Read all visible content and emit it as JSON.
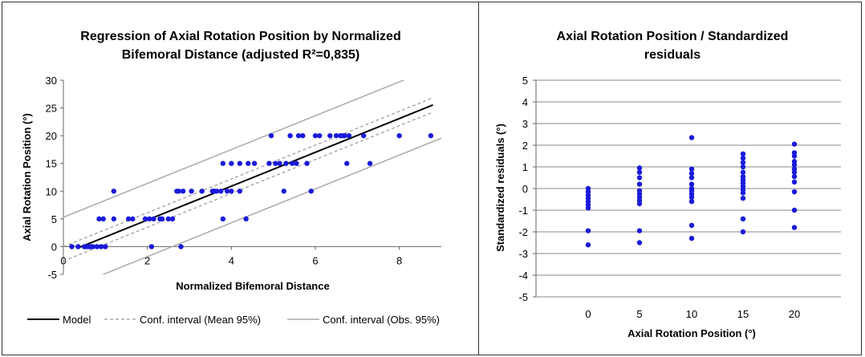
{
  "chart_data": [
    {
      "type": "scatter",
      "title_lines": [
        "Regression of Axial Rotation Position by Normalized",
        "Bifemoral Distance (adjusted R²=0,835)"
      ],
      "xlabel": "Normalized Bifemoral Distance",
      "ylabel": "Axial Rotation Position (°)",
      "xlim": [
        0,
        9
      ],
      "ylim": [
        -5,
        30
      ],
      "xticks": [
        "0",
        "2",
        "4",
        "6",
        "8"
      ],
      "yticks": [
        "-5",
        "0",
        "5",
        "10",
        "15",
        "20",
        "25",
        "30"
      ],
      "xtick_values": [
        0,
        2,
        4,
        6,
        8
      ],
      "ytick_values": [
        -5,
        0,
        5,
        10,
        15,
        20,
        25,
        30
      ],
      "point_color": "#1a1adb",
      "points": [
        [
          0.2,
          0
        ],
        [
          0.35,
          0
        ],
        [
          0.5,
          0
        ],
        [
          0.55,
          0
        ],
        [
          0.6,
          0
        ],
        [
          0.65,
          0
        ],
        [
          0.7,
          0
        ],
        [
          0.8,
          0
        ],
        [
          0.9,
          0
        ],
        [
          1.0,
          0
        ],
        [
          0.85,
          5
        ],
        [
          0.95,
          5
        ],
        [
          1.2,
          10
        ],
        [
          1.2,
          5
        ],
        [
          1.55,
          5
        ],
        [
          1.65,
          5
        ],
        [
          1.95,
          5
        ],
        [
          2.05,
          5
        ],
        [
          2.1,
          0
        ],
        [
          2.15,
          5
        ],
        [
          2.3,
          5
        ],
        [
          2.35,
          5
        ],
        [
          2.5,
          5
        ],
        [
          2.6,
          5
        ],
        [
          2.7,
          10
        ],
        [
          2.75,
          10
        ],
        [
          2.8,
          0
        ],
        [
          2.85,
          10
        ],
        [
          3.05,
          10
        ],
        [
          3.3,
          10
        ],
        [
          3.55,
          10
        ],
        [
          3.6,
          10
        ],
        [
          3.65,
          10
        ],
        [
          3.75,
          10
        ],
        [
          3.8,
          5
        ],
        [
          3.8,
          15
        ],
        [
          3.9,
          10
        ],
        [
          4.0,
          15
        ],
        [
          4.0,
          10
        ],
        [
          4.2,
          15
        ],
        [
          4.2,
          10
        ],
        [
          4.35,
          5
        ],
        [
          4.4,
          15
        ],
        [
          4.55,
          15
        ],
        [
          4.9,
          15
        ],
        [
          4.95,
          20
        ],
        [
          5.05,
          15
        ],
        [
          5.15,
          15
        ],
        [
          5.25,
          10
        ],
        [
          5.3,
          15
        ],
        [
          5.4,
          20
        ],
        [
          5.45,
          15
        ],
        [
          5.55,
          15
        ],
        [
          5.6,
          20
        ],
        [
          5.7,
          20
        ],
        [
          5.8,
          15
        ],
        [
          5.9,
          10
        ],
        [
          6.0,
          20
        ],
        [
          6.1,
          20
        ],
        [
          6.35,
          20
        ],
        [
          6.5,
          20
        ],
        [
          6.6,
          20
        ],
        [
          6.65,
          20
        ],
        [
          6.7,
          20
        ],
        [
          6.75,
          15
        ],
        [
          6.8,
          20
        ],
        [
          7.15,
          20
        ],
        [
          7.3,
          15
        ],
        [
          8.0,
          20
        ],
        [
          8.75,
          20
        ]
      ],
      "model": {
        "intercept": -1.3,
        "slope": 3.05
      },
      "mean_ci_half_width": 1.3,
      "obs_ci_half_width": 6.6,
      "legend": [
        {
          "label": "Model",
          "style": "solid-black"
        },
        {
          "label": "Conf. interval (Mean 95%)",
          "style": "dashed-gray"
        },
        {
          "label": "Conf. interval (Obs. 95%)",
          "style": "solid-gray"
        }
      ],
      "legend_position": "bottom"
    },
    {
      "type": "scatter",
      "title_lines": [
        "Axial Rotation Position / Standardized",
        "residuals"
      ],
      "xlabel": "Axial Rotation Position (°)",
      "ylabel": "Standardized residuals (°)",
      "categories": [
        "0",
        "5",
        "10",
        "15",
        "20"
      ],
      "ylim": [
        -5,
        5
      ],
      "yticks": [
        "5",
        "4",
        "3",
        "2",
        "1",
        "0",
        "-1",
        "-2",
        "-3",
        "-4",
        "-5"
      ],
      "grid": true,
      "point_color": "#1a1adb",
      "points": [
        [
          0,
          0.0
        ],
        [
          0,
          -0.15
        ],
        [
          0,
          -0.3
        ],
        [
          0,
          -0.45
        ],
        [
          0,
          -0.6
        ],
        [
          0,
          -0.75
        ],
        [
          0,
          -0.9
        ],
        [
          0,
          -1.95
        ],
        [
          0,
          -2.6
        ],
        [
          5,
          0.95
        ],
        [
          5,
          0.75
        ],
        [
          5,
          0.5
        ],
        [
          5,
          0.2
        ],
        [
          5,
          -0.1
        ],
        [
          5,
          -0.25
        ],
        [
          5,
          -0.4
        ],
        [
          5,
          -0.55
        ],
        [
          5,
          -0.7
        ],
        [
          5,
          -1.95
        ],
        [
          5,
          -2.5
        ],
        [
          10,
          2.35
        ],
        [
          10,
          0.9
        ],
        [
          10,
          0.7
        ],
        [
          10,
          0.5
        ],
        [
          10,
          0.2
        ],
        [
          10,
          0.0
        ],
        [
          10,
          -0.1
        ],
        [
          10,
          -0.25
        ],
        [
          10,
          -0.4
        ],
        [
          10,
          -0.6
        ],
        [
          10,
          -1.7
        ],
        [
          10,
          -2.3
        ],
        [
          15,
          1.6
        ],
        [
          15,
          1.4
        ],
        [
          15,
          1.2
        ],
        [
          15,
          1.0
        ],
        [
          15,
          0.75
        ],
        [
          15,
          0.55
        ],
        [
          15,
          0.4
        ],
        [
          15,
          0.25
        ],
        [
          15,
          0.1
        ],
        [
          15,
          -0.05
        ],
        [
          15,
          -0.2
        ],
        [
          15,
          -0.45
        ],
        [
          15,
          -1.4
        ],
        [
          15,
          -2.0
        ],
        [
          20,
          2.05
        ],
        [
          20,
          1.65
        ],
        [
          20,
          1.5
        ],
        [
          20,
          1.25
        ],
        [
          20,
          1.1
        ],
        [
          20,
          0.9
        ],
        [
          20,
          0.75
        ],
        [
          20,
          0.55
        ],
        [
          20,
          0.3
        ],
        [
          20,
          -0.15
        ],
        [
          20,
          -1.0
        ],
        [
          20,
          -1.8
        ]
      ]
    }
  ]
}
